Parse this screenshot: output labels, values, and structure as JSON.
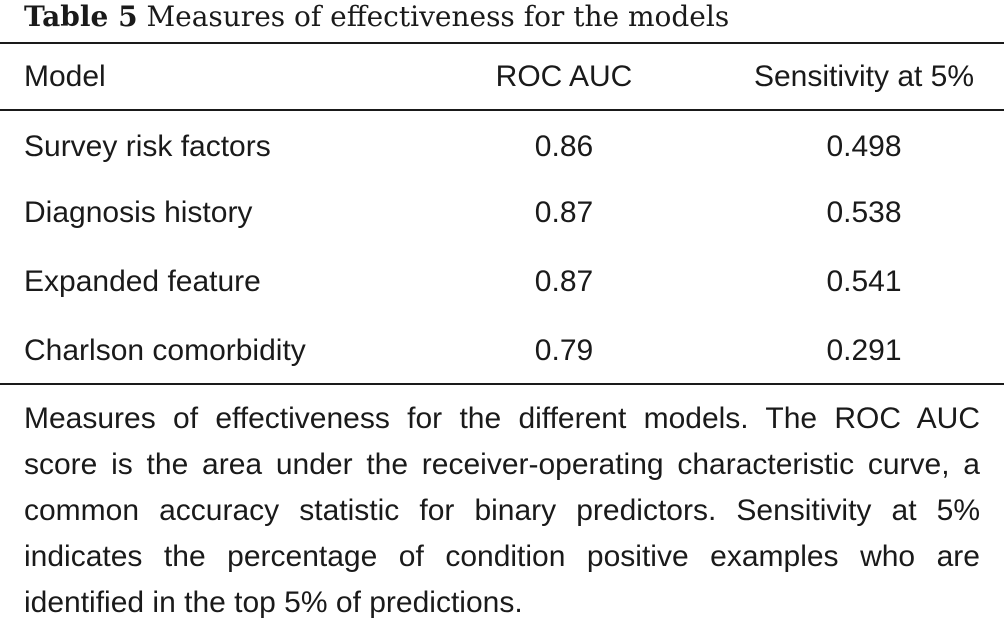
{
  "caption": {
    "label": "Table 5",
    "text": "Measures of effectiveness for the models"
  },
  "table": {
    "headers": [
      "Model",
      "ROC AUC",
      "Sensitivity at 5%"
    ],
    "rows": [
      [
        "Survey risk factors",
        "0.86",
        "0.498"
      ],
      [
        "Diagnosis history",
        "0.87",
        "0.538"
      ],
      [
        "Expanded feature",
        "0.87",
        "0.541"
      ],
      [
        "Charlson comorbidity",
        "0.79",
        "0.291"
      ]
    ]
  },
  "footnote": "Measures of effectiveness for the different models. The ROC AUC score is the area under the receiver-operating characteristic curve, a common accuracy statistic for binary predictors. Sensitivity at 5% indicates the percentage of condition positive examples who are identified in the top 5% of predictions."
}
